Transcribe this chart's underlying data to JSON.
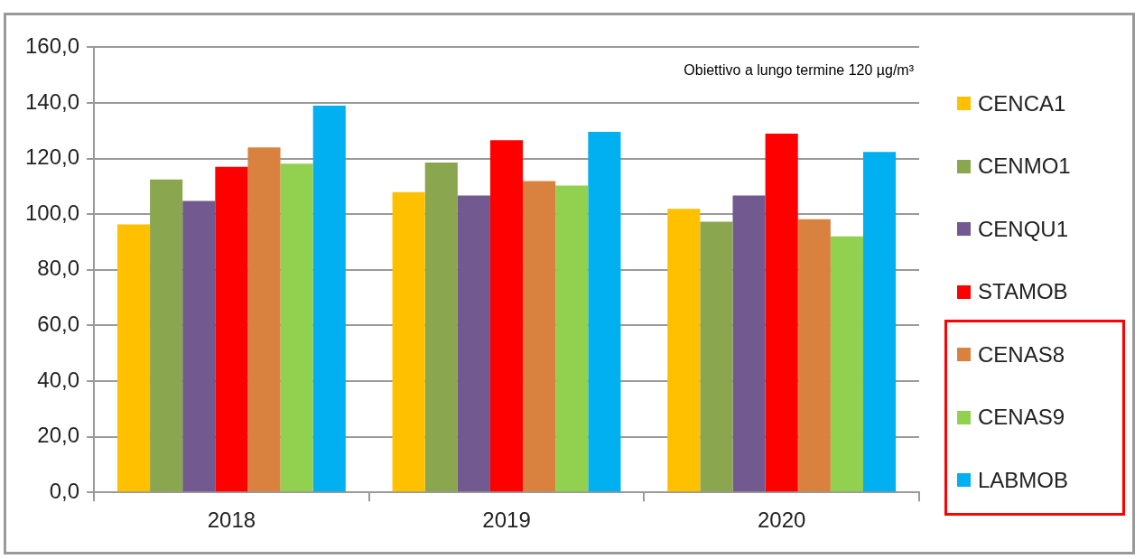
{
  "chart_data": {
    "type": "bar",
    "categories": [
      "2018",
      "2019",
      "2020"
    ],
    "series": [
      {
        "name": "CENCA1",
        "color": "#ffc000",
        "values": [
          96.3,
          107.9,
          101.9
        ]
      },
      {
        "name": "CENMO1",
        "color": "#8aa64f",
        "values": [
          112.5,
          118.6,
          97.3
        ]
      },
      {
        "name": "CENQU1",
        "color": "#72598f",
        "values": [
          104.8,
          106.7,
          106.7
        ]
      },
      {
        "name": "STAMOB",
        "color": "#ff0000",
        "values": [
          117.0,
          126.6,
          129.0
        ]
      },
      {
        "name": "CENAS8",
        "color": "#d9823f",
        "values": [
          124.0,
          111.9,
          98.2
        ]
      },
      {
        "name": "CENAS9",
        "color": "#92d050",
        "values": [
          118.2,
          110.3,
          92.0
        ]
      },
      {
        "name": "LABMOB",
        "color": "#00b0f0",
        "values": [
          139.0,
          129.6,
          122.4
        ]
      }
    ],
    "ylim": [
      0,
      160
    ],
    "yticks": [
      {
        "value": 0,
        "label": "0,0"
      },
      {
        "value": 20,
        "label": "20,0"
      },
      {
        "value": 40,
        "label": "40,0"
      },
      {
        "value": 60,
        "label": "60,0"
      },
      {
        "value": 80,
        "label": "80,0"
      },
      {
        "value": 100,
        "label": "100,0"
      },
      {
        "value": 120,
        "label": "120,0"
      },
      {
        "value": 140,
        "label": "140,0"
      },
      {
        "value": 160,
        "label": "160,0"
      }
    ],
    "grid": "y",
    "legend": "right",
    "annotations": [
      "Obiettivo a lungo termine 120 µg/m³"
    ]
  }
}
